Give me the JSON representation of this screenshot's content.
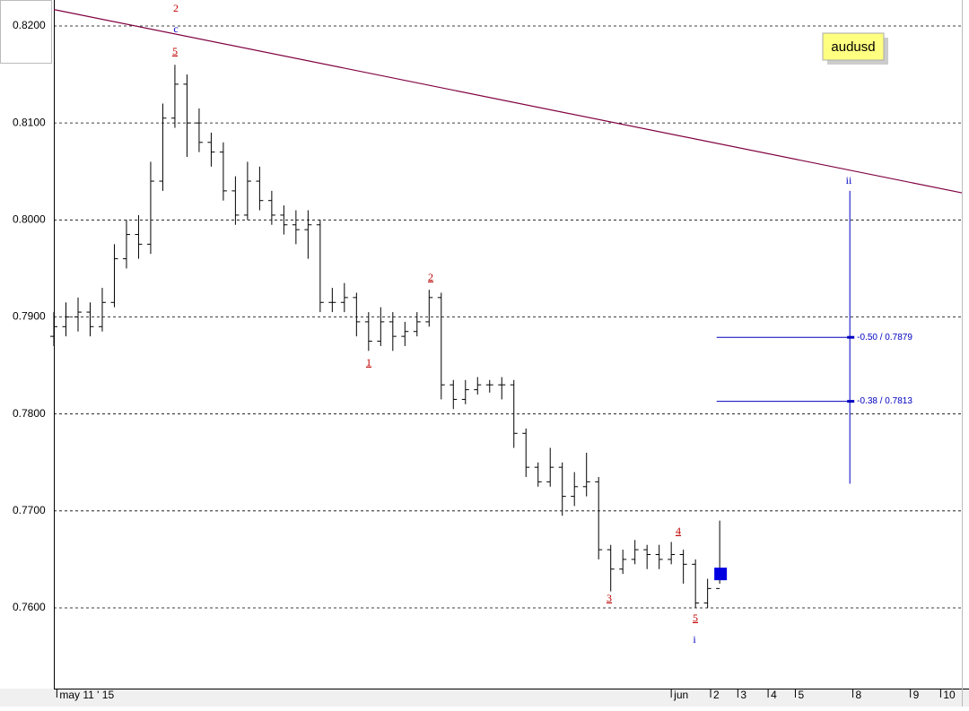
{
  "chart_data": {
    "type": "ohlc",
    "symbol": "audusd",
    "color": "#000000",
    "x": [
      0,
      4,
      8,
      12,
      16,
      20,
      24,
      28,
      32,
      36,
      40,
      44,
      48,
      52,
      56,
      60,
      64,
      68,
      72,
      76,
      80,
      84,
      88,
      92,
      96,
      100,
      104,
      108,
      112,
      116,
      120,
      124,
      128,
      132,
      136,
      140,
      144,
      148,
      152,
      156,
      160,
      164,
      168,
      172,
      176,
      180,
      184,
      188,
      192,
      196,
      200,
      204,
      208,
      212,
      216,
      220
    ],
    "open": [
      0.788,
      0.789,
      0.79,
      0.7905,
      0.789,
      0.7915,
      0.796,
      0.7985,
      0.7975,
      0.804,
      0.8105,
      0.814,
      0.81,
      0.808,
      0.807,
      0.803,
      0.8005,
      0.804,
      0.802,
      0.8005,
      0.7995,
      0.799,
      0.7995,
      0.7915,
      0.7915,
      0.792,
      0.7895,
      0.7875,
      0.7895,
      0.788,
      0.7885,
      0.7895,
      0.792,
      0.783,
      0.7815,
      0.7825,
      0.783,
      0.783,
      0.783,
      0.778,
      0.7745,
      0.773,
      0.7745,
      0.7715,
      0.7725,
      0.773,
      0.766,
      0.764,
      0.765,
      0.766,
      0.7655,
      0.765,
      0.7655,
      0.7645,
      0.7605,
      0.762
    ],
    "high": [
      0.7905,
      0.7915,
      0.792,
      0.7915,
      0.793,
      0.7975,
      0.8,
      0.8005,
      0.806,
      0.812,
      0.816,
      0.815,
      0.8115,
      0.809,
      0.808,
      0.8045,
      0.806,
      0.8055,
      0.803,
      0.8015,
      0.801,
      0.801,
      0.8,
      0.793,
      0.7935,
      0.7925,
      0.7905,
      0.791,
      0.7905,
      0.7895,
      0.7905,
      0.7928,
      0.7925,
      0.7835,
      0.7835,
      0.7838,
      0.7835,
      0.7838,
      0.7835,
      0.7785,
      0.775,
      0.7765,
      0.775,
      0.774,
      0.776,
      0.7735,
      0.7665,
      0.766,
      0.767,
      0.7665,
      0.7665,
      0.7668,
      0.766,
      0.765,
      0.763,
      0.769
    ],
    "low": [
      0.787,
      0.788,
      0.7885,
      0.788,
      0.7885,
      0.791,
      0.795,
      0.796,
      0.7965,
      0.803,
      0.8095,
      0.8065,
      0.807,
      0.8055,
      0.802,
      0.7995,
      0.8,
      0.801,
      0.7995,
      0.7985,
      0.7975,
      0.796,
      0.7905,
      0.7905,
      0.7905,
      0.788,
      0.7865,
      0.787,
      0.7865,
      0.787,
      0.788,
      0.789,
      0.7815,
      0.7805,
      0.781,
      0.782,
      0.7822,
      0.7815,
      0.7765,
      0.7735,
      0.7725,
      0.7725,
      0.7695,
      0.7705,
      0.7715,
      0.765,
      0.7617,
      0.7635,
      0.7645,
      0.764,
      0.764,
      0.7645,
      0.7625,
      0.76,
      0.76,
      0.7625
    ],
    "close": [
      0.789,
      0.79,
      0.7905,
      0.789,
      0.7915,
      0.796,
      0.7985,
      0.7975,
      0.804,
      0.8105,
      0.814,
      0.81,
      0.808,
      0.807,
      0.803,
      0.8005,
      0.804,
      0.802,
      0.8005,
      0.7995,
      0.799,
      0.7995,
      0.7915,
      0.7915,
      0.792,
      0.7895,
      0.7875,
      0.7895,
      0.788,
      0.7885,
      0.7895,
      0.792,
      0.783,
      0.7815,
      0.7825,
      0.783,
      0.783,
      0.783,
      0.778,
      0.7745,
      0.773,
      0.7745,
      0.7715,
      0.7725,
      0.773,
      0.766,
      0.764,
      0.765,
      0.766,
      0.7655,
      0.765,
      0.7655,
      0.7645,
      0.7605,
      0.762,
      0.7635
    ],
    "xlim": [
      0,
      300
    ],
    "ylim": [
      0.75168,
      0.82268
    ],
    "yticks": [
      {
        "value": 0.82,
        "label": "0.8200"
      },
      {
        "value": 0.81,
        "label": "0.8100"
      },
      {
        "value": 0.8,
        "label": "0.8000"
      },
      {
        "value": 0.79,
        "label": "0.7900"
      },
      {
        "value": 0.78,
        "label": "0.7800"
      },
      {
        "value": 0.77,
        "label": "0.7700"
      },
      {
        "value": 0.76,
        "label": "0.7600"
      }
    ],
    "xticks": [
      {
        "value": 1,
        "label": "may 11 ' 15"
      },
      {
        "value": 204,
        "label": "jun"
      },
      {
        "value": 217,
        "label": "2"
      },
      {
        "value": 226,
        "label": "3"
      },
      {
        "value": 236,
        "label": "4"
      },
      {
        "value": 245,
        "label": "5"
      },
      {
        "value": 264,
        "label": "8"
      },
      {
        "value": 283,
        "label": "9"
      },
      {
        "value": 293,
        "label": "10"
      }
    ],
    "grid": true,
    "trendline": {
      "x": [
        0,
        300
      ],
      "y": [
        0.8217,
        0.8028
      ],
      "color": "#800040"
    },
    "fib": {
      "color": "#0000c0",
      "x": 263,
      "from": 0.803,
      "to": 0.7728,
      "start": 219,
      "levels": [
        {
          "value": 0.7879,
          "label": "-0.50 / 0.7879"
        },
        {
          "value": 0.7813,
          "label": "-0.38 / 0.7813"
        }
      ]
    },
    "annotations": [
      {
        "text": "2",
        "color": "#c00000"
      },
      {
        "text": "c",
        "color": "#0000c0"
      },
      {
        "text": "5",
        "color": "#c00000"
      },
      {
        "text": "1",
        "color": "#c00000"
      },
      {
        "text": "2",
        "color": "#c00000"
      },
      {
        "text": "3",
        "color": "#c00000"
      },
      {
        "text": "4",
        "color": "#c00000"
      },
      {
        "text": "5",
        "color": "#c00000"
      },
      {
        "text": "i",
        "color": "#0000c0"
      },
      {
        "text": "ii",
        "color": "#0000c0"
      }
    ]
  }
}
